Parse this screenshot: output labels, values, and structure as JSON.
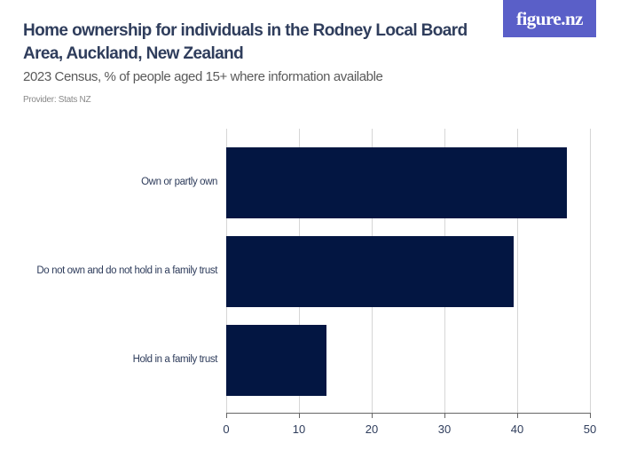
{
  "header": {
    "title": "Home ownership for individuals in the Rodney Local Board Area, Auckland, New Zealand",
    "subtitle": "2023 Census, % of people aged 15+ where information available",
    "provider": "Provider: Stats NZ",
    "logo": "figure.nz"
  },
  "colors": {
    "bar": "#031642",
    "logo_bg": "#5a5fc8",
    "title": "#2f3d5c"
  },
  "chart_data": {
    "type": "bar",
    "orientation": "horizontal",
    "title": "Home ownership for individuals in the Rodney Local Board Area, Auckland, New Zealand",
    "subtitle": "2023 Census, % of people aged 15+ where information available",
    "categories": [
      "Own or partly own",
      "Do not own and do not hold in a family trust",
      "Hold in a family trust"
    ],
    "values": [
      46.8,
      39.5,
      13.8
    ],
    "xlabel": "",
    "ylabel": "",
    "xlim": [
      0,
      50
    ],
    "xticks": [
      0,
      10,
      20,
      30,
      40,
      50
    ],
    "grid": true,
    "legend": null
  },
  "axis": {
    "ticks": [
      "0",
      "10",
      "20",
      "30",
      "40",
      "50"
    ]
  }
}
